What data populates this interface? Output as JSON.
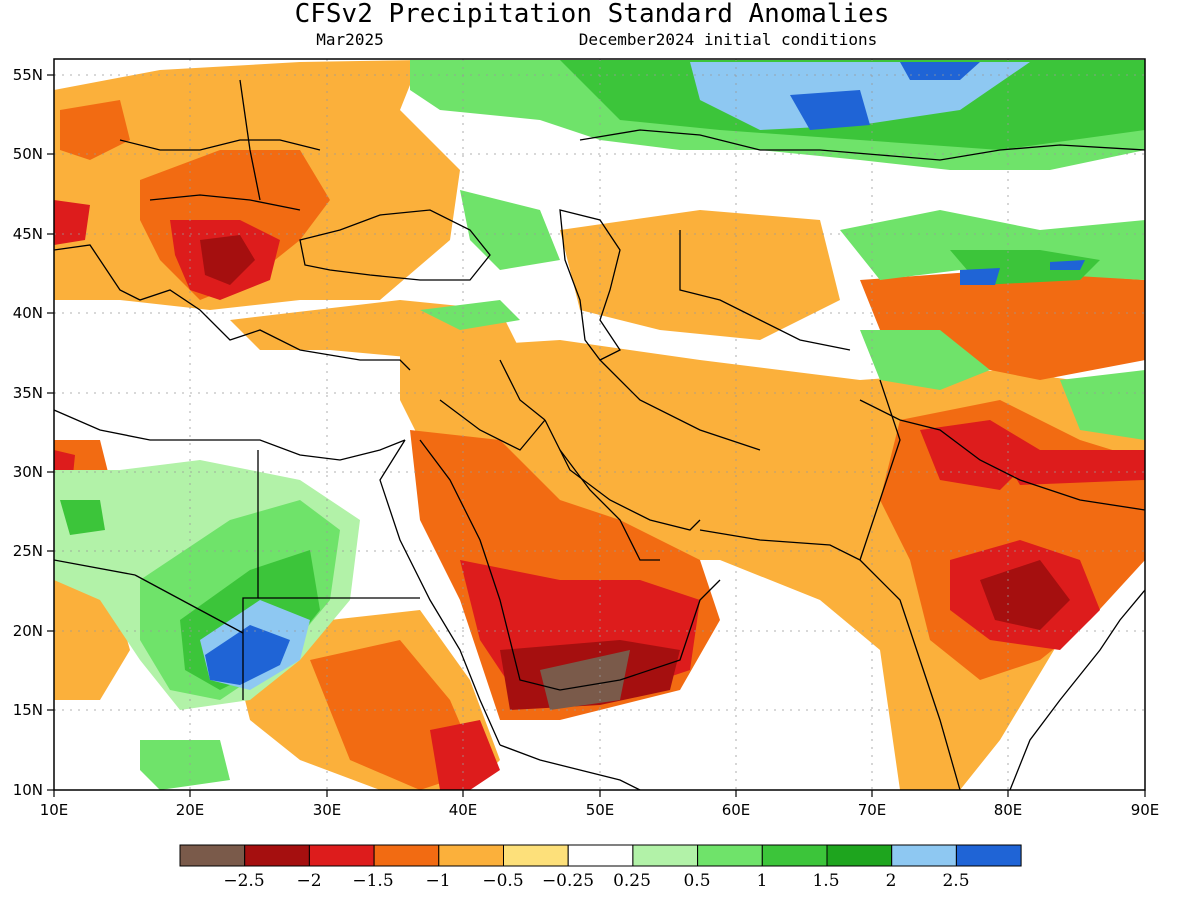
{
  "title": "CFSv2 Precipitation Standard Anomalies",
  "valid_month": "Mar2025",
  "init_conditions": "December2024 initial conditions",
  "map": {
    "lon_labels": [
      "10E",
      "20E",
      "30E",
      "40E",
      "50E",
      "60E",
      "70E",
      "80E",
      "90E"
    ],
    "lat_labels": [
      "55N",
      "50N",
      "45N",
      "40N",
      "35N",
      "30N",
      "25N",
      "20N",
      "15N",
      "10N"
    ],
    "lon_range": [
      10,
      90
    ],
    "lat_range": [
      10,
      56
    ],
    "grid": "dotted"
  },
  "legend": {
    "colors": [
      "#7a5a4a",
      "#a50f0f",
      "#dd1c1c",
      "#f26b12",
      "#fbb03b",
      "#fde07a",
      "#ffffff",
      "#b2f2a8",
      "#6fe36a",
      "#3cc53a",
      "#1ea51e",
      "#8ec8f2",
      "#1f64d6"
    ],
    "labels": [
      "−2.5",
      "−2",
      "−1.5",
      "−1",
      "−0.5",
      "−0.25",
      "0.25",
      "0.5",
      "1",
      "1.5",
      "2",
      "2.5"
    ]
  }
}
